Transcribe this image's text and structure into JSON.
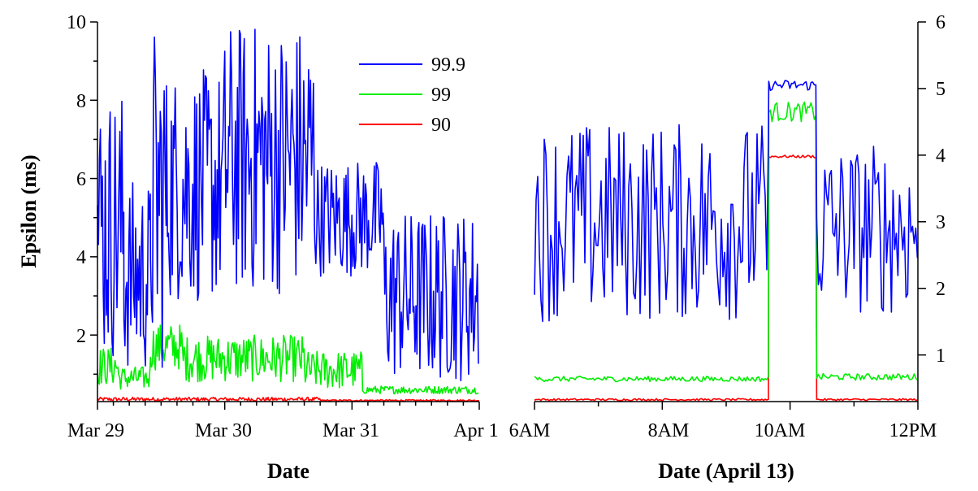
{
  "colors": {
    "p999": "#0000ff",
    "p99": "#00ee00",
    "p90": "#ff0000",
    "axis": "#000000"
  },
  "chart_data": [
    {
      "type": "line",
      "xlabel": "Date",
      "ylabel": "Epsilon (ms)",
      "x_tick_labels": [
        "Mar 29",
        "Mar 30",
        "Mar 31",
        "Apr 1"
      ],
      "x_range": [
        "Mar 29",
        "Apr 1"
      ],
      "ylim": [
        0.3,
        10
      ],
      "y_ticks": [
        2,
        4,
        6,
        8,
        10
      ],
      "legend": {
        "placement": "top-center",
        "entries": [
          "99.9",
          "99",
          "90"
        ]
      },
      "grid": false,
      "series": [
        {
          "name": "99.9",
          "color": "#0000ff",
          "segments": [
            {
              "x": [
                "Mar 29",
                "Mar 29 05:00"
              ],
              "base": 4.8,
              "spread": 3.5
            },
            {
              "x": [
                "Mar 29 05:00",
                "Mar 29 10:00"
              ],
              "base": 3.5,
              "spread": 2.5
            },
            {
              "x": [
                "Mar 29 10:00",
                "Mar 29 13:00"
              ],
              "base": 5.5,
              "spread": 4.5
            },
            {
              "x": [
                "Mar 29 13:00",
                "Mar 30"
              ],
              "base": 5.8,
              "spread": 3.0
            },
            {
              "x": [
                "Mar 30",
                "Mar 30 17:00"
              ],
              "base": 6.5,
              "spread": 3.5
            },
            {
              "x": [
                "Mar 30 17:00",
                "Mar 31 06:00"
              ],
              "base": 5.0,
              "spread": 1.5
            },
            {
              "x": [
                "Mar 31 06:00",
                "Apr 1"
              ],
              "base": 3.0,
              "spread": 2.2
            }
          ]
        },
        {
          "name": "99",
          "color": "#00ee00",
          "segments": [
            {
              "x": [
                "Mar 29",
                "Mar 29 04:00"
              ],
              "base": 1.2,
              "spread": 0.5
            },
            {
              "x": [
                "Mar 29 04:00",
                "Mar 29 10:00"
              ],
              "base": 0.9,
              "spread": 0.3
            },
            {
              "x": [
                "Mar 29 10:00",
                "Mar 29 16:00"
              ],
              "base": 1.7,
              "spread": 0.6
            },
            {
              "x": [
                "Mar 29 16:00",
                "Mar 30 15:00"
              ],
              "base": 1.4,
              "spread": 0.6
            },
            {
              "x": [
                "Mar 30 15:00",
                "Mar 31 02:00"
              ],
              "base": 1.1,
              "spread": 0.5
            },
            {
              "x": [
                "Mar 31 02:00",
                "Apr 1"
              ],
              "base": 0.6,
              "spread": 0.1
            }
          ]
        },
        {
          "name": "90",
          "color": "#ff0000",
          "segments": [
            {
              "x": [
                "Mar 29",
                "Mar 30 18:00"
              ],
              "base": 0.36,
              "spread": 0.05
            },
            {
              "x": [
                "Mar 30 18:00",
                "Apr 1"
              ],
              "base": 0.33,
              "spread": 0.02
            }
          ]
        }
      ]
    },
    {
      "type": "line",
      "xlabel": "Date (April 13)",
      "ylabel": "",
      "x_tick_labels": [
        "6AM",
        "8AM",
        "10AM",
        "12PM"
      ],
      "x_range": [
        "6AM",
        "12PM"
      ],
      "ylim": [
        0.3,
        6
      ],
      "y_ticks": [
        1,
        2,
        3,
        4,
        5,
        6
      ],
      "grid": false,
      "series": [
        {
          "name": "99.9",
          "color": "#0000ff",
          "segments": [
            {
              "x": [
                "6:00",
                "9:40"
              ],
              "base": 3.0,
              "spread": 1.5
            },
            {
              "x": [
                "9:40",
                "10:25"
              ],
              "base": 5.05,
              "spread": 0.08
            },
            {
              "x": [
                "10:25",
                "12:00"
              ],
              "base": 2.9,
              "spread": 1.3
            }
          ]
        },
        {
          "name": "99",
          "color": "#00ee00",
          "segments": [
            {
              "x": [
                "6:00",
                "9:40"
              ],
              "base": 0.64,
              "spread": 0.04
            },
            {
              "x": [
                "9:40",
                "10:25"
              ],
              "base": 4.65,
              "spread": 0.15
            },
            {
              "x": [
                "10:25",
                "12:00"
              ],
              "base": 0.67,
              "spread": 0.05
            }
          ]
        },
        {
          "name": "90",
          "color": "#ff0000",
          "segments": [
            {
              "x": [
                "6:00",
                "9:40"
              ],
              "base": 0.33,
              "spread": 0.015
            },
            {
              "x": [
                "9:40",
                "10:25"
              ],
              "base": 3.98,
              "spread": 0.02
            },
            {
              "x": [
                "10:25",
                "12:00"
              ],
              "base": 0.33,
              "spread": 0.015
            }
          ]
        }
      ]
    }
  ]
}
